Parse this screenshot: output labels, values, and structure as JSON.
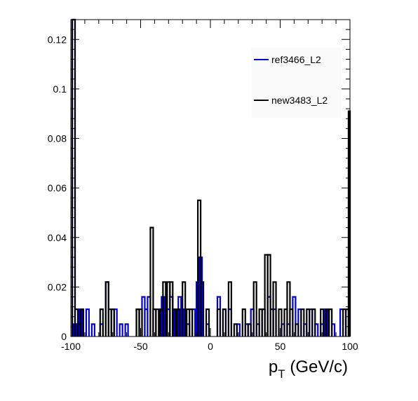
{
  "chart_data": {
    "type": "step",
    "title": "",
    "xlabel": "p_T (GeV/c)",
    "xlabel_main": "p",
    "xlabel_sub": "T",
    "xlabel_rest": " (GeV/c)",
    "ylabel": "",
    "xlim": [
      -100,
      100
    ],
    "ylim": [
      0,
      0.128
    ],
    "x_ticks": [
      -100,
      -50,
      0,
      50,
      100
    ],
    "x_tick_labels": [
      "-100",
      "-50",
      "0",
      "50",
      "100"
    ],
    "y_ticks": [
      0,
      0.02,
      0.04,
      0.06,
      0.08,
      0.1,
      0.12
    ],
    "y_tick_labels": [
      "0",
      "0.02",
      "0.04",
      "0.06",
      "0.08",
      "0.1",
      "0.12"
    ],
    "legend_position": "top-right",
    "series": [
      {
        "name": "ref3466_L2",
        "color": "#0000cc",
        "points": [
          [
            -98,
            0.128
          ],
          [
            -97,
            0.005
          ],
          [
            -95,
            0.005
          ],
          [
            -93,
            0.011
          ],
          [
            -88,
            0.011
          ],
          [
            -84,
            0.005
          ],
          [
            -78,
            0.005
          ],
          [
            -74,
            0.022
          ],
          [
            -70,
            0.011
          ],
          [
            -68,
            0.011
          ],
          [
            -64,
            0.005
          ],
          [
            -60,
            0.005
          ],
          [
            -52,
            0.011
          ],
          [
            -48,
            0.016
          ],
          [
            -46,
            0.011
          ],
          [
            -44,
            0.016
          ],
          [
            -40,
            0.011
          ],
          [
            -36,
            0.011
          ],
          [
            -34,
            0.016
          ],
          [
            -32,
            0.011
          ],
          [
            -30,
            0.011
          ],
          [
            -28,
            0.016
          ],
          [
            -25,
            0.011
          ],
          [
            -22,
            0.016
          ],
          [
            -20,
            0.011
          ],
          [
            -16,
            0.005
          ],
          [
            -12,
            0.011
          ],
          [
            -9,
            0.022
          ],
          [
            -7,
            0.032
          ],
          [
            -2,
            0.005
          ],
          [
            6,
            0.016
          ],
          [
            10,
            0.011
          ],
          [
            14,
            0.011
          ],
          [
            20,
            0.005
          ],
          [
            26,
            0.005
          ],
          [
            30,
            0.011
          ],
          [
            34,
            0.005
          ],
          [
            38,
            0.011
          ],
          [
            42,
            0.016
          ],
          [
            46,
            0.011
          ],
          [
            52,
            0.005
          ],
          [
            56,
            0.005
          ],
          [
            60,
            0.016
          ],
          [
            64,
            0.011
          ],
          [
            68,
            0.005
          ],
          [
            72,
            0.011
          ],
          [
            76,
            0.005
          ],
          [
            80,
            0.005
          ],
          [
            83,
            0.011
          ],
          [
            88,
            0.005
          ],
          [
            94,
            0.011
          ],
          [
            98,
            0.011
          ],
          [
            100,
            0.091
          ]
        ]
      },
      {
        "name": "new3483_L2",
        "color": "#000000",
        "points": [
          [
            -98,
            0.128
          ],
          [
            -96,
            0.011
          ],
          [
            -94,
            0.005
          ],
          [
            -92,
            0.011
          ],
          [
            -78,
            0.011
          ],
          [
            -74,
            0.022
          ],
          [
            -72,
            0.011
          ],
          [
            -70,
            0.011
          ],
          [
            -52,
            0.011
          ],
          [
            -50,
            0.011
          ],
          [
            -42,
            0.044
          ],
          [
            -40,
            0.011
          ],
          [
            -38,
            0.011
          ],
          [
            -35,
            0.011
          ],
          [
            -33,
            0.022
          ],
          [
            -30,
            0.022
          ],
          [
            -28,
            0.022
          ],
          [
            -26,
            0.011
          ],
          [
            -23,
            0.011
          ],
          [
            -19,
            0.022
          ],
          [
            -16,
            0.011
          ],
          [
            -14,
            0.011
          ],
          [
            -8,
            0.055
          ],
          [
            -6,
            0.022
          ],
          [
            -2,
            0.011
          ],
          [
            6,
            0.011
          ],
          [
            10,
            0.011
          ],
          [
            14,
            0.022
          ],
          [
            18,
            0.005
          ],
          [
            24,
            0.011
          ],
          [
            28,
            0.005
          ],
          [
            32,
            0.022
          ],
          [
            36,
            0.011
          ],
          [
            38,
            0.011
          ],
          [
            40,
            0.033
          ],
          [
            42,
            0.033
          ],
          [
            44,
            0.011
          ],
          [
            46,
            0.022
          ],
          [
            50,
            0.011
          ],
          [
            54,
            0.011
          ],
          [
            56,
            0.022
          ],
          [
            58,
            0.011
          ],
          [
            62,
            0.005
          ],
          [
            66,
            0.011
          ],
          [
            70,
            0.011
          ],
          [
            74,
            0.011
          ],
          [
            80,
            0.011
          ],
          [
            84,
            0.011
          ],
          [
            86,
            0.011
          ],
          [
            96,
            0.011
          ],
          [
            98,
            0.011
          ],
          [
            100,
            0.091
          ]
        ]
      }
    ]
  }
}
